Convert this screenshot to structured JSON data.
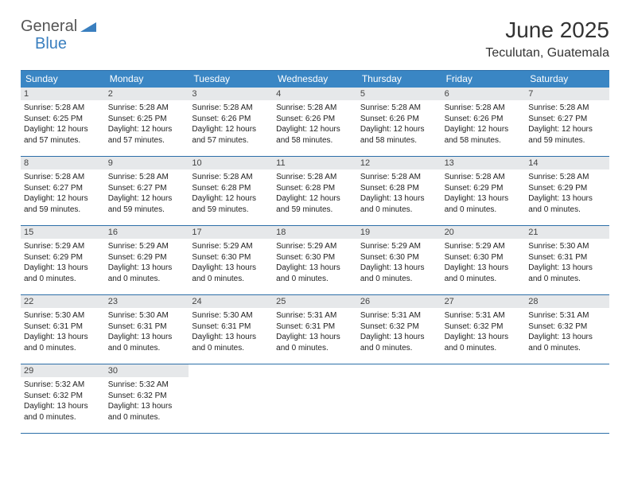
{
  "logo": {
    "main": "General",
    "accent": "Blue"
  },
  "title": "June 2025",
  "location": "Teculutan, Guatemala",
  "colors": {
    "header_bg": "#3a86c4",
    "daynum_bg": "#e6e8ea",
    "border": "#2d6fa8",
    "logo_accent": "#3a7fbf"
  },
  "days_of_week": [
    "Sunday",
    "Monday",
    "Tuesday",
    "Wednesday",
    "Thursday",
    "Friday",
    "Saturday"
  ],
  "weeks": [
    [
      {
        "n": "1",
        "sr": "Sunrise: 5:28 AM",
        "ss": "Sunset: 6:25 PM",
        "dl": "Daylight: 12 hours and 57 minutes."
      },
      {
        "n": "2",
        "sr": "Sunrise: 5:28 AM",
        "ss": "Sunset: 6:25 PM",
        "dl": "Daylight: 12 hours and 57 minutes."
      },
      {
        "n": "3",
        "sr": "Sunrise: 5:28 AM",
        "ss": "Sunset: 6:26 PM",
        "dl": "Daylight: 12 hours and 57 minutes."
      },
      {
        "n": "4",
        "sr": "Sunrise: 5:28 AM",
        "ss": "Sunset: 6:26 PM",
        "dl": "Daylight: 12 hours and 58 minutes."
      },
      {
        "n": "5",
        "sr": "Sunrise: 5:28 AM",
        "ss": "Sunset: 6:26 PM",
        "dl": "Daylight: 12 hours and 58 minutes."
      },
      {
        "n": "6",
        "sr": "Sunrise: 5:28 AM",
        "ss": "Sunset: 6:26 PM",
        "dl": "Daylight: 12 hours and 58 minutes."
      },
      {
        "n": "7",
        "sr": "Sunrise: 5:28 AM",
        "ss": "Sunset: 6:27 PM",
        "dl": "Daylight: 12 hours and 59 minutes."
      }
    ],
    [
      {
        "n": "8",
        "sr": "Sunrise: 5:28 AM",
        "ss": "Sunset: 6:27 PM",
        "dl": "Daylight: 12 hours and 59 minutes."
      },
      {
        "n": "9",
        "sr": "Sunrise: 5:28 AM",
        "ss": "Sunset: 6:27 PM",
        "dl": "Daylight: 12 hours and 59 minutes."
      },
      {
        "n": "10",
        "sr": "Sunrise: 5:28 AM",
        "ss": "Sunset: 6:28 PM",
        "dl": "Daylight: 12 hours and 59 minutes."
      },
      {
        "n": "11",
        "sr": "Sunrise: 5:28 AM",
        "ss": "Sunset: 6:28 PM",
        "dl": "Daylight: 12 hours and 59 minutes."
      },
      {
        "n": "12",
        "sr": "Sunrise: 5:28 AM",
        "ss": "Sunset: 6:28 PM",
        "dl": "Daylight: 13 hours and 0 minutes."
      },
      {
        "n": "13",
        "sr": "Sunrise: 5:28 AM",
        "ss": "Sunset: 6:29 PM",
        "dl": "Daylight: 13 hours and 0 minutes."
      },
      {
        "n": "14",
        "sr": "Sunrise: 5:28 AM",
        "ss": "Sunset: 6:29 PM",
        "dl": "Daylight: 13 hours and 0 minutes."
      }
    ],
    [
      {
        "n": "15",
        "sr": "Sunrise: 5:29 AM",
        "ss": "Sunset: 6:29 PM",
        "dl": "Daylight: 13 hours and 0 minutes."
      },
      {
        "n": "16",
        "sr": "Sunrise: 5:29 AM",
        "ss": "Sunset: 6:29 PM",
        "dl": "Daylight: 13 hours and 0 minutes."
      },
      {
        "n": "17",
        "sr": "Sunrise: 5:29 AM",
        "ss": "Sunset: 6:30 PM",
        "dl": "Daylight: 13 hours and 0 minutes."
      },
      {
        "n": "18",
        "sr": "Sunrise: 5:29 AM",
        "ss": "Sunset: 6:30 PM",
        "dl": "Daylight: 13 hours and 0 minutes."
      },
      {
        "n": "19",
        "sr": "Sunrise: 5:29 AM",
        "ss": "Sunset: 6:30 PM",
        "dl": "Daylight: 13 hours and 0 minutes."
      },
      {
        "n": "20",
        "sr": "Sunrise: 5:29 AM",
        "ss": "Sunset: 6:30 PM",
        "dl": "Daylight: 13 hours and 0 minutes."
      },
      {
        "n": "21",
        "sr": "Sunrise: 5:30 AM",
        "ss": "Sunset: 6:31 PM",
        "dl": "Daylight: 13 hours and 0 minutes."
      }
    ],
    [
      {
        "n": "22",
        "sr": "Sunrise: 5:30 AM",
        "ss": "Sunset: 6:31 PM",
        "dl": "Daylight: 13 hours and 0 minutes."
      },
      {
        "n": "23",
        "sr": "Sunrise: 5:30 AM",
        "ss": "Sunset: 6:31 PM",
        "dl": "Daylight: 13 hours and 0 minutes."
      },
      {
        "n": "24",
        "sr": "Sunrise: 5:30 AM",
        "ss": "Sunset: 6:31 PM",
        "dl": "Daylight: 13 hours and 0 minutes."
      },
      {
        "n": "25",
        "sr": "Sunrise: 5:31 AM",
        "ss": "Sunset: 6:31 PM",
        "dl": "Daylight: 13 hours and 0 minutes."
      },
      {
        "n": "26",
        "sr": "Sunrise: 5:31 AM",
        "ss": "Sunset: 6:32 PM",
        "dl": "Daylight: 13 hours and 0 minutes."
      },
      {
        "n": "27",
        "sr": "Sunrise: 5:31 AM",
        "ss": "Sunset: 6:32 PM",
        "dl": "Daylight: 13 hours and 0 minutes."
      },
      {
        "n": "28",
        "sr": "Sunrise: 5:31 AM",
        "ss": "Sunset: 6:32 PM",
        "dl": "Daylight: 13 hours and 0 minutes."
      }
    ],
    [
      {
        "n": "29",
        "sr": "Sunrise: 5:32 AM",
        "ss": "Sunset: 6:32 PM",
        "dl": "Daylight: 13 hours and 0 minutes."
      },
      {
        "n": "30",
        "sr": "Sunrise: 5:32 AM",
        "ss": "Sunset: 6:32 PM",
        "dl": "Daylight: 13 hours and 0 minutes."
      },
      null,
      null,
      null,
      null,
      null
    ]
  ]
}
